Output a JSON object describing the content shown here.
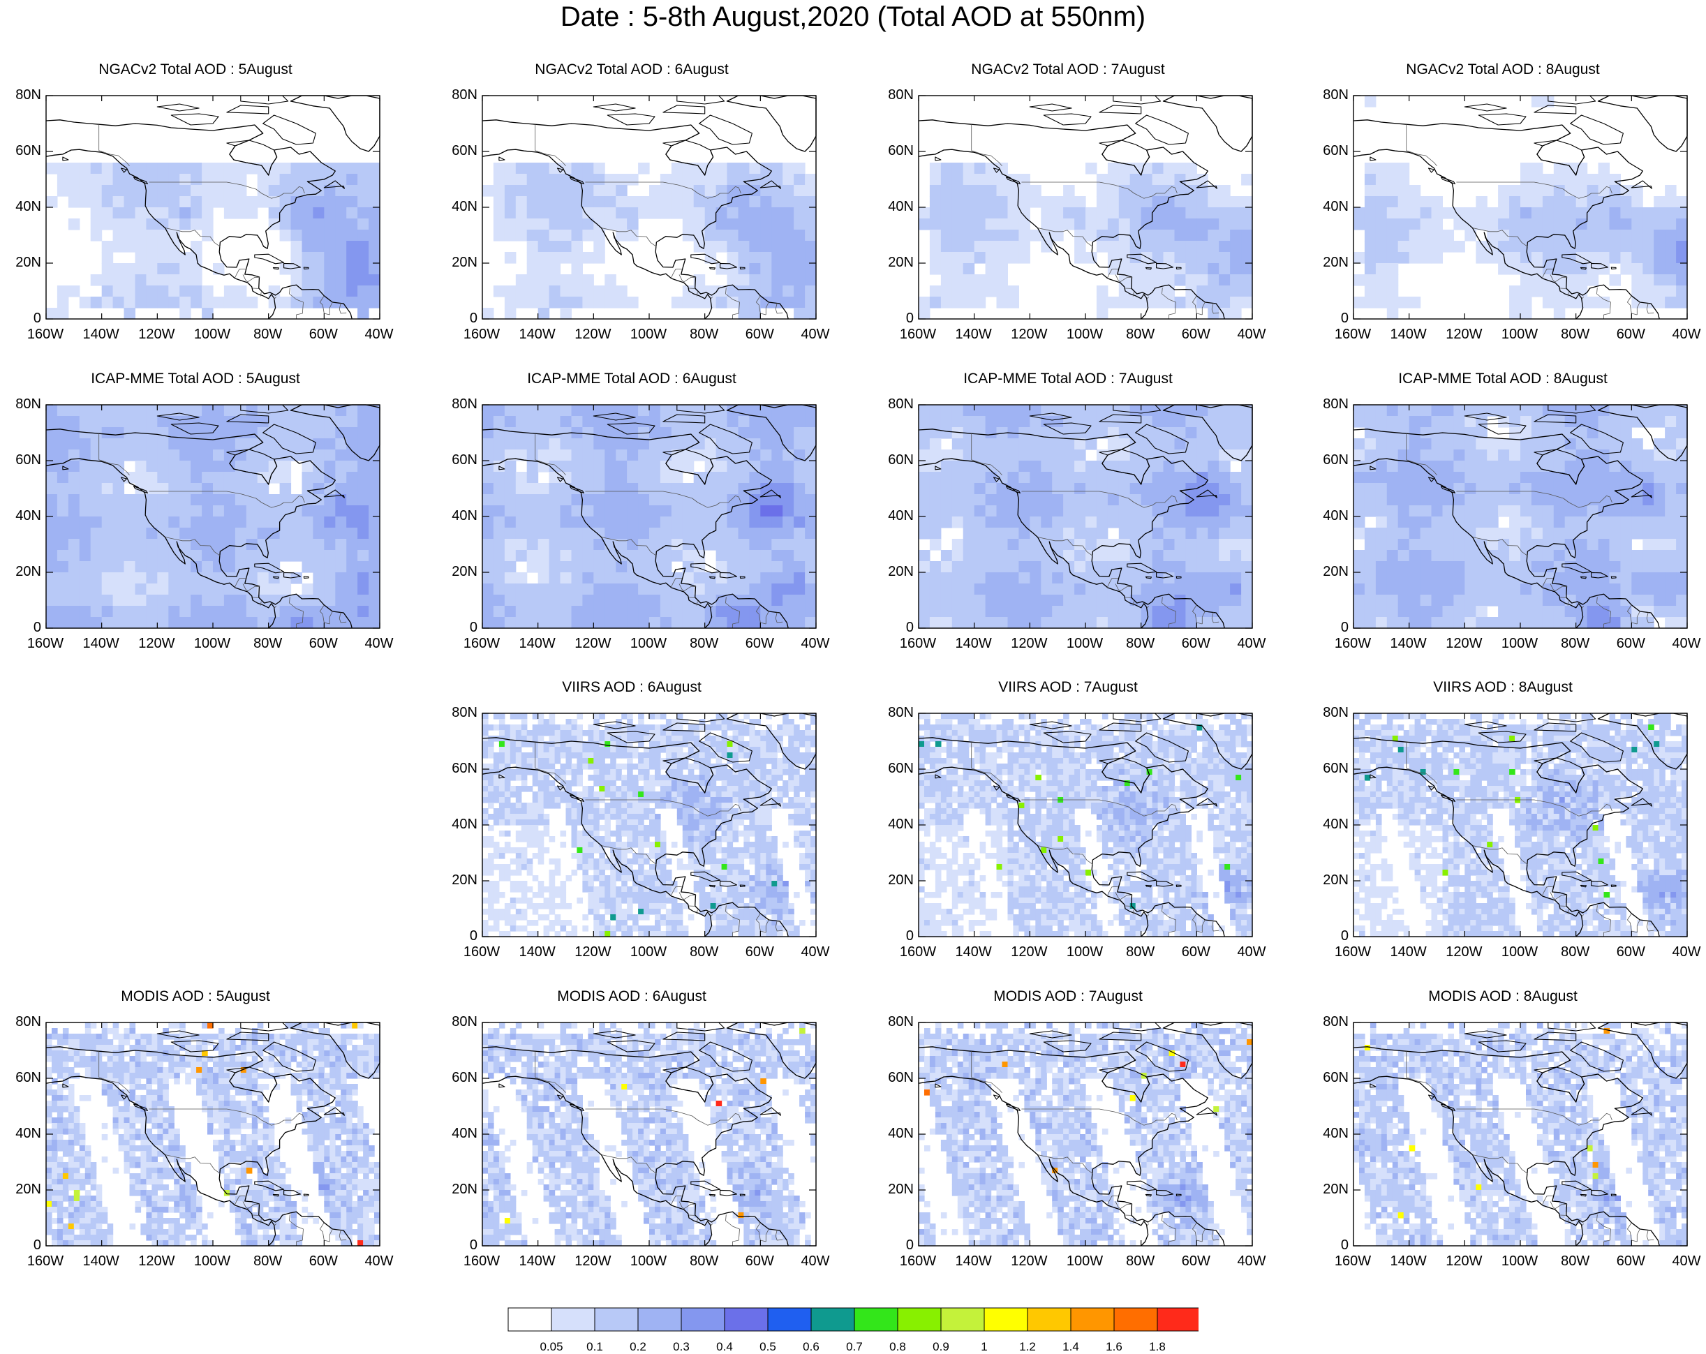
{
  "title": "Date : 5-8th August,2020 (Total AOD at 550nm)",
  "lat_ticks": [
    "80N",
    "60N",
    "40N",
    "20N",
    "0"
  ],
  "lon_ticks": [
    "160W",
    "140W",
    "120W",
    "100W",
    "80W",
    "60W",
    "40W"
  ],
  "panels": [
    {
      "row": 0,
      "col": 0,
      "title": "NGACv2 Total AOD : 5August",
      "type": "model"
    },
    {
      "row": 0,
      "col": 1,
      "title": "NGACv2 Total AOD : 6August",
      "type": "model"
    },
    {
      "row": 0,
      "col": 2,
      "title": "NGACv2 Total AOD : 7August",
      "type": "model"
    },
    {
      "row": 0,
      "col": 3,
      "title": "NGACv2 Total AOD : 8August",
      "type": "model"
    },
    {
      "row": 1,
      "col": 0,
      "title": "ICAP-MME Total AOD : 5August",
      "type": "ens"
    },
    {
      "row": 1,
      "col": 1,
      "title": "ICAP-MME Total AOD : 6August",
      "type": "ens"
    },
    {
      "row": 1,
      "col": 2,
      "title": "ICAP-MME Total AOD : 7August",
      "type": "ens"
    },
    {
      "row": 1,
      "col": 3,
      "title": "ICAP-MME Total AOD : 8August",
      "type": "ens"
    },
    {
      "row": 2,
      "col": 1,
      "title": "VIIRS AOD : 6August",
      "type": "sat"
    },
    {
      "row": 2,
      "col": 2,
      "title": "VIIRS AOD : 7August",
      "type": "sat"
    },
    {
      "row": 2,
      "col": 3,
      "title": "VIIRS AOD : 8August",
      "type": "sat"
    },
    {
      "row": 3,
      "col": 0,
      "title": "MODIS AOD : 5August",
      "type": "swath"
    },
    {
      "row": 3,
      "col": 1,
      "title": "MODIS AOD : 6August",
      "type": "swath"
    },
    {
      "row": 3,
      "col": 2,
      "title": "MODIS AOD : 7August",
      "type": "swath"
    },
    {
      "row": 3,
      "col": 3,
      "title": "MODIS AOD : 8August",
      "type": "swath"
    }
  ],
  "colorbar": {
    "labels": [
      "0.05",
      "0.1",
      "0.2",
      "0.3",
      "0.4",
      "0.5",
      "0.6",
      "0.7",
      "0.8",
      "0.9",
      "1",
      "1.2",
      "1.4",
      "1.6",
      "1.8"
    ],
    "colors": [
      "#ffffff",
      "#d6e0fb",
      "#b8c9f7",
      "#9fb3f3",
      "#8497ef",
      "#6b70e9",
      "#1f5ff0",
      "#0f9a8f",
      "#33e61a",
      "#88f000",
      "#c4f23a",
      "#ffff00",
      "#ffc800",
      "#ff9600",
      "#ff6e00",
      "#ff2a1a"
    ]
  },
  "shading": {
    "coast": "#000000",
    "border": "#555555"
  }
}
